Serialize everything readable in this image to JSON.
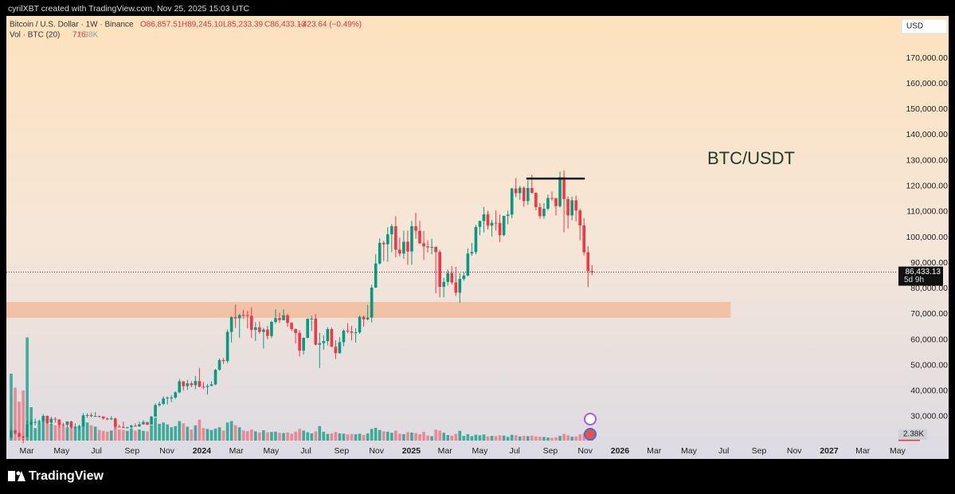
{
  "chart_data": {
    "type": "candlestick",
    "attribution": "cyrilXBT created with TradingView.com, Nov 25, 2025 15:03 UTC",
    "brand": "TradingView",
    "currency": "USD",
    "annotation": "BTC/USDT",
    "legend": {
      "symbol": "Bitcoin / U.S. Dollar · 1W · Binance",
      "open": "O86,857.51",
      "high": "H89,245.10",
      "low": "L85,233.39",
      "close": "C86,433.13",
      "change": "−423.64 (−0.49%)",
      "volume_title": "Vol · BTC (20)"
    },
    "up_color": "#089981",
    "down_color": "#f23645",
    "ylim": [
      19400,
      186500
    ],
    "yticks": [
      {
        "value": 30000,
        "label": "30,000.00"
      },
      {
        "value": 40000,
        "label": "40,000.00"
      },
      {
        "value": 50000,
        "label": "50,000.00"
      },
      {
        "value": 60000,
        "label": "60,000.00"
      },
      {
        "value": 70000,
        "label": "70,000.00"
      },
      {
        "value": 80000,
        "label": "80,000.00"
      },
      {
        "value": 90000,
        "label": "90,000.00"
      },
      {
        "value": 100000,
        "label": "100,000.00"
      },
      {
        "value": 110000,
        "label": "110,000.00"
      },
      {
        "value": 120000,
        "label": "120,000.00"
      },
      {
        "value": 130000,
        "label": "130,000.00"
      },
      {
        "value": 140000,
        "label": "140,000.00"
      },
      {
        "value": 150000,
        "label": "150,000.00"
      },
      {
        "value": 160000,
        "label": "160,000.00"
      },
      {
        "value": 170000,
        "label": "170,000.00"
      }
    ],
    "xlim": [
      -1.2,
      220.9
    ],
    "xticks": [
      {
        "value": 2.3,
        "label": "Mar"
      },
      {
        "value": 11.0,
        "label": "May"
      },
      {
        "value": 19.7,
        "label": "Jul"
      },
      {
        "value": 28.6,
        "label": "Sep"
      },
      {
        "value": 37.3,
        "label": "Nov"
      },
      {
        "value": 46.0,
        "label": "2024"
      },
      {
        "value": 54.6,
        "label": "Mar"
      },
      {
        "value": 63.3,
        "label": "May"
      },
      {
        "value": 72.0,
        "label": "Jul"
      },
      {
        "value": 80.9,
        "label": "Sep"
      },
      {
        "value": 89.6,
        "label": "Nov"
      },
      {
        "value": 98.3,
        "label": "2025"
      },
      {
        "value": 106.7,
        "label": "Mar"
      },
      {
        "value": 115.4,
        "label": "May"
      },
      {
        "value": 124.1,
        "label": "Jul"
      },
      {
        "value": 133.0,
        "label": "Sep"
      },
      {
        "value": 141.7,
        "label": "Nov"
      },
      {
        "value": 150.4,
        "label": "2026"
      },
      {
        "value": 158.9,
        "label": "Mar"
      },
      {
        "value": 167.6,
        "label": "May"
      },
      {
        "value": 176.3,
        "label": "Jul"
      },
      {
        "value": 185.1,
        "label": "Sep"
      },
      {
        "value": 193.9,
        "label": "Nov"
      },
      {
        "value": 202.6,
        "label": "2027"
      },
      {
        "value": 211.0,
        "label": "Mar"
      },
      {
        "value": 219.7,
        "label": "May"
      }
    ],
    "candles": [
      [
        21800,
        25250,
        21600,
        24600
      ],
      [
        24600,
        25100,
        23100,
        23500
      ],
      [
        23500,
        23900,
        21900,
        22200
      ],
      [
        22200,
        22600,
        19600,
        22100
      ],
      [
        22100,
        28400,
        21900,
        26900
      ],
      [
        26900,
        28800,
        26600,
        27900
      ],
      [
        27900,
        29200,
        26600,
        27900
      ],
      [
        27900,
        28800,
        27200,
        28300
      ],
      [
        28300,
        31000,
        28200,
        30300
      ],
      [
        30300,
        30500,
        27100,
        27600
      ],
      [
        27600,
        30000,
        26900,
        29200
      ],
      [
        29200,
        29800,
        27700,
        28900
      ],
      [
        28900,
        29000,
        25800,
        26900
      ],
      [
        26900,
        27600,
        26100,
        26800
      ],
      [
        26800,
        28200,
        25900,
        28100
      ],
      [
        28100,
        28400,
        25400,
        25800
      ],
      [
        25800,
        27400,
        25400,
        25900
      ],
      [
        25900,
        26800,
        24800,
        26300
      ],
      [
        26300,
        31400,
        26200,
        30500
      ],
      [
        30500,
        31300,
        29500,
        30600
      ],
      [
        30600,
        31500,
        29700,
        30200
      ],
      [
        30200,
        31800,
        29900,
        30250
      ],
      [
        30250,
        30400,
        29600,
        30100
      ],
      [
        30100,
        30100,
        28900,
        29300
      ],
      [
        29300,
        29700,
        28600,
        29100
      ],
      [
        29100,
        30200,
        28700,
        29300
      ],
      [
        29300,
        29700,
        25200,
        26100
      ],
      [
        26100,
        26800,
        25800,
        26000
      ],
      [
        26000,
        28100,
        25400,
        25800
      ],
      [
        25800,
        26000,
        25400,
        25850
      ],
      [
        25850,
        26900,
        24900,
        26500
      ],
      [
        26500,
        27400,
        26100,
        26200
      ],
      [
        26200,
        28000,
        26000,
        27000
      ],
      [
        27000,
        28600,
        26900,
        27900
      ],
      [
        27900,
        27900,
        26600,
        26900
      ],
      [
        26900,
        30300,
        26900,
        30000
      ],
      [
        30000,
        35200,
        29900,
        34500
      ],
      [
        34500,
        35900,
        33900,
        35000
      ],
      [
        35000,
        37900,
        34500,
        37100
      ],
      [
        37100,
        37900,
        34800,
        37400
      ],
      [
        37400,
        38400,
        35700,
        37450
      ],
      [
        37450,
        39900,
        36900,
        39500
      ],
      [
        39500,
        44700,
        39100,
        43800
      ],
      [
        43800,
        43800,
        40200,
        41900
      ],
      [
        41900,
        44400,
        40500,
        43000
      ],
      [
        43000,
        43800,
        41500,
        42300
      ],
      [
        42300,
        45900,
        40800,
        43900
      ],
      [
        43900,
        49000,
        41500,
        41700
      ],
      [
        41700,
        43600,
        40700,
        41600
      ],
      [
        41600,
        42800,
        38600,
        42000
      ],
      [
        42000,
        43800,
        41900,
        42600
      ],
      [
        42600,
        48600,
        42300,
        48300
      ],
      [
        48300,
        52800,
        48000,
        52100
      ],
      [
        52100,
        52900,
        50600,
        51700
      ],
      [
        51700,
        64000,
        50900,
        63100
      ],
      [
        63100,
        69200,
        59000,
        68900
      ],
      [
        68900,
        73800,
        64600,
        68400
      ],
      [
        68400,
        70000,
        60800,
        69700
      ],
      [
        69700,
        71700,
        68200,
        69600
      ],
      [
        69600,
        71300,
        64500,
        69400
      ],
      [
        69400,
        72700,
        60700,
        63900
      ],
      [
        63900,
        66900,
        59600,
        64900
      ],
      [
        64900,
        67200,
        62400,
        63100
      ],
      [
        63100,
        64700,
        56600,
        64000
      ],
      [
        64000,
        65500,
        60200,
        61500
      ],
      [
        61500,
        67500,
        60700,
        67000
      ],
      [
        67000,
        71900,
        66300,
        68500
      ],
      [
        68500,
        70600,
        66600,
        67700
      ],
      [
        67700,
        71900,
        67600,
        69600
      ],
      [
        69600,
        70100,
        65100,
        66600
      ],
      [
        66600,
        66900,
        63400,
        64200
      ],
      [
        64200,
        64500,
        58500,
        62700
      ],
      [
        62700,
        63800,
        53500,
        55800
      ],
      [
        55800,
        60900,
        54300,
        60800
      ],
      [
        60800,
        68400,
        60600,
        68200
      ],
      [
        68200,
        69400,
        63500,
        68300
      ],
      [
        68300,
        70000,
        57800,
        58100
      ],
      [
        58100,
        62700,
        49000,
        58700
      ],
      [
        58700,
        61800,
        56100,
        59500
      ],
      [
        59500,
        65000,
        57900,
        64200
      ],
      [
        64200,
        64900,
        57200,
        57300
      ],
      [
        57300,
        59800,
        52500,
        54800
      ],
      [
        54800,
        61000,
        54600,
        59100
      ],
      [
        59100,
        64100,
        57500,
        63600
      ],
      [
        63600,
        66500,
        62600,
        63300
      ],
      [
        63300,
        65500,
        59800,
        62800
      ],
      [
        62800,
        64500,
        58900,
        62900
      ],
      [
        62900,
        69500,
        62400,
        69000
      ],
      [
        69000,
        69500,
        65100,
        68000
      ],
      [
        68000,
        73600,
        67600,
        68700
      ],
      [
        68700,
        81500,
        66800,
        80400
      ],
      [
        80400,
        93400,
        80300,
        89800
      ],
      [
        89800,
        99600,
        89400,
        97900
      ],
      [
        97900,
        98700,
        90800,
        97300
      ],
      [
        97300,
        104000,
        90500,
        101200
      ],
      [
        101200,
        105200,
        94200,
        104400
      ],
      [
        104400,
        108300,
        92200,
        95200
      ],
      [
        95200,
        99900,
        92600,
        93700
      ],
      [
        93700,
        102700,
        91600,
        98300
      ],
      [
        98300,
        102700,
        89300,
        94500
      ],
      [
        94500,
        106400,
        89300,
        104400
      ],
      [
        104400,
        109600,
        99500,
        102600
      ],
      [
        102600,
        106500,
        97500,
        97700
      ],
      [
        97700,
        102500,
        91200,
        96500
      ],
      [
        96500,
        98800,
        94100,
        96100
      ],
      [
        96100,
        99500,
        93400,
        96300
      ],
      [
        96300,
        96500,
        78200,
        94300
      ],
      [
        94300,
        95000,
        76600,
        80700
      ],
      [
        80700,
        84200,
        76600,
        82600
      ],
      [
        82600,
        87400,
        81200,
        86100
      ],
      [
        86100,
        88800,
        81600,
        82400
      ],
      [
        82400,
        88500,
        77100,
        78400
      ],
      [
        78400,
        86100,
        74500,
        83800
      ],
      [
        83800,
        86400,
        83100,
        85100
      ],
      [
        85100,
        95700,
        84800,
        93700
      ],
      [
        93700,
        97900,
        92800,
        94300
      ],
      [
        94300,
        104900,
        93400,
        104100
      ],
      [
        104100,
        106600,
        100800,
        106400
      ],
      [
        106400,
        111900,
        102000,
        109000
      ],
      [
        109000,
        110400,
        103100,
        104600
      ],
      [
        104600,
        106800,
        100400,
        105700
      ],
      [
        105700,
        110500,
        102700,
        105600
      ],
      [
        105600,
        108900,
        98200,
        100900
      ],
      [
        100900,
        108500,
        100400,
        108400
      ],
      [
        108400,
        110500,
        105100,
        108900
      ],
      [
        108900,
        119400,
        107400,
        119100
      ],
      [
        119100,
        123200,
        115700,
        117300
      ],
      [
        117300,
        120200,
        114700,
        119400
      ],
      [
        119400,
        119900,
        112000,
        114200
      ],
      [
        114200,
        122300,
        112700,
        119300
      ],
      [
        119300,
        124500,
        117200,
        117400
      ],
      [
        117400,
        117600,
        110600,
        111800
      ],
      [
        111800,
        113400,
        107300,
        108300
      ],
      [
        108300,
        113400,
        107300,
        111200
      ],
      [
        111200,
        116700,
        110600,
        115400
      ],
      [
        115400,
        117900,
        114400,
        115300
      ],
      [
        115300,
        115500,
        108600,
        112200
      ],
      [
        112200,
        125700,
        111600,
        123500
      ],
      [
        123500,
        126200,
        102000,
        115000
      ],
      [
        115000,
        116000,
        103500,
        108600
      ],
      [
        108600,
        115900,
        106700,
        114500
      ],
      [
        114500,
        116400,
        106300,
        110500
      ],
      [
        110500,
        111200,
        98900,
        104700
      ],
      [
        104700,
        107500,
        93000,
        94200
      ],
      [
        94200,
        96600,
        80600,
        86857
      ],
      [
        86857.51,
        89245.1,
        85233.39,
        86433.13
      ]
    ],
    "volume_lim": [
      0,
      40000
    ],
    "volume": [
      24000,
      19000,
      14000,
      18000,
      37000,
      12000,
      4500,
      6500,
      8000,
      7500,
      6000,
      5500,
      7000,
      5200,
      4800,
      5500,
      5000,
      5200,
      8500,
      6500,
      5500,
      5000,
      3800,
      3500,
      3200,
      3600,
      6800,
      4000,
      3800,
      3500,
      4200,
      3600,
      4000,
      3500,
      3300,
      5500,
      8200,
      6000,
      6500,
      5800,
      4800,
      5200,
      7000,
      6200,
      5000,
      4000,
      5500,
      7500,
      4500,
      4200,
      3800,
      4300,
      4800,
      3600,
      6500,
      7000,
      5500,
      4800,
      3600,
      3400,
      4000,
      3300,
      2900,
      3700,
      3000,
      3100,
      3200,
      2800,
      2700,
      2900,
      2500,
      3200,
      4200,
      3600,
      3000,
      2600,
      3300,
      5200,
      3200,
      2400,
      2600,
      3100,
      2600,
      2500,
      2200,
      2400,
      2300,
      2500,
      2000,
      2600,
      4200,
      4600,
      3800,
      3300,
      3200,
      2800,
      3600,
      2500,
      2300,
      3000,
      2900,
      2700,
      2300,
      3100,
      1800,
      1600,
      3900,
      3600,
      2800,
      2000,
      1800,
      2400,
      3500,
      1700,
      2300,
      1600,
      2100,
      1900,
      2200,
      1500,
      1700,
      1600,
      1900,
      1800,
      1300,
      2100,
      1900,
      1500,
      1700,
      1600,
      1800,
      1500,
      1400,
      1300,
      1100,
      1000,
      1200,
      1700,
      2400,
      1900,
      1400,
      1500,
      2200,
      2600,
      3000,
      716
    ],
    "volume_ma": {
      "value": 2380,
      "label": "2.38K"
    },
    "last_price": {
      "value": 86433.13,
      "label": "86,433.13",
      "countdown": "5d 9h"
    },
    "hline": {
      "y": 123000,
      "x": [
        128.6,
        143.2
      ],
      "color": "#111111"
    },
    "zone": {
      "ylim": [
        68600,
        74800
      ],
      "xlim": [
        -1.2,
        179.6
      ],
      "color": "#f2b48e"
    }
  }
}
